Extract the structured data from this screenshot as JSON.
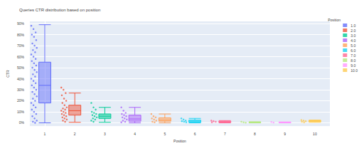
{
  "chart_data": {
    "type": "box",
    "title": "Queries CTR distribution based on position",
    "x_label": "Position",
    "y_label": "CTR",
    "legend_title": "Position",
    "legend": "top-right",
    "grid": true,
    "categories": [
      "1",
      "2",
      "3",
      "4",
      "5",
      "6",
      "7",
      "8",
      "9",
      "10"
    ],
    "ylim": [
      -3,
      92
    ],
    "yticks": [
      {
        "value": 0,
        "label": "0%"
      },
      {
        "value": 10,
        "label": "10%"
      },
      {
        "value": 20,
        "label": "20%"
      },
      {
        "value": 30,
        "label": "30%"
      },
      {
        "value": 40,
        "label": "40%"
      },
      {
        "value": 50,
        "label": "50%"
      },
      {
        "value": 60,
        "label": "60%"
      },
      {
        "value": 70,
        "label": "70%"
      },
      {
        "value": 80,
        "label": "80%"
      },
      {
        "value": 90,
        "label": "90%"
      }
    ],
    "series": [
      {
        "name": "1.0",
        "color": "#636efa",
        "box": [
          0,
          18,
          34,
          55,
          89
        ],
        "points": [
          88,
          85,
          82,
          80,
          78,
          75,
          72,
          70,
          68,
          66,
          64,
          62,
          60,
          58,
          56,
          54,
          52,
          50,
          48,
          46,
          44,
          42,
          40,
          38,
          36,
          34,
          32,
          30,
          28,
          26,
          24,
          22,
          20,
          18,
          16,
          14,
          12,
          10,
          8,
          6,
          4,
          2,
          1,
          0
        ]
      },
      {
        "name": "2.0",
        "color": "#EF553B",
        "box": [
          0.5,
          7,
          11,
          16,
          27
        ],
        "points": [
          32,
          30,
          27,
          25,
          22,
          20,
          18,
          16,
          14,
          13,
          12,
          11,
          10,
          9,
          8,
          7,
          6,
          5,
          4,
          3,
          2,
          1
        ]
      },
      {
        "name": "3.0",
        "color": "#00cc96",
        "box": [
          0.5,
          4,
          6,
          8,
          14
        ],
        "points": [
          18,
          14,
          12,
          10,
          9,
          8,
          7,
          6,
          5,
          4,
          3,
          2,
          1
        ]
      },
      {
        "name": "4.0",
        "color": "#ab63fa",
        "box": [
          0,
          1.5,
          3.5,
          7,
          14
        ],
        "points": [
          14,
          11,
          9,
          8,
          7,
          6,
          5,
          4,
          3,
          2,
          1,
          0.5
        ]
      },
      {
        "name": "5.0",
        "color": "#FFA15A",
        "box": [
          0,
          1.5,
          2.5,
          4.5,
          8
        ],
        "points": [
          8,
          6,
          5,
          4,
          3,
          2,
          1,
          0.5
        ]
      },
      {
        "name": "6.0",
        "color": "#19d3f3",
        "box": [
          0,
          0.5,
          1.5,
          2.5,
          4
        ],
        "points": [
          4,
          3,
          2,
          1.5,
          1,
          0.5
        ]
      },
      {
        "name": "7.0",
        "color": "#FF6692",
        "box": [
          0,
          0.5,
          1,
          1.5,
          2
        ],
        "points": [
          2,
          1.5,
          1,
          0.5
        ]
      },
      {
        "name": "8.0",
        "color": "#B6E880",
        "box": [
          0,
          0.2,
          0.4,
          0.6,
          1
        ],
        "points": [
          1,
          0.5,
          0.2
        ]
      },
      {
        "name": "9.0",
        "color": "#FF97FF",
        "box": [
          0,
          0.2,
          0.3,
          0.5,
          0.8
        ],
        "points": [
          0.8,
          0.3
        ]
      },
      {
        "name": "10.0",
        "color": "#FECB52",
        "box": [
          0.5,
          1,
          1.5,
          2,
          2.5
        ],
        "points": [
          2.5,
          2,
          1.5,
          1,
          0.5
        ]
      }
    ]
  }
}
